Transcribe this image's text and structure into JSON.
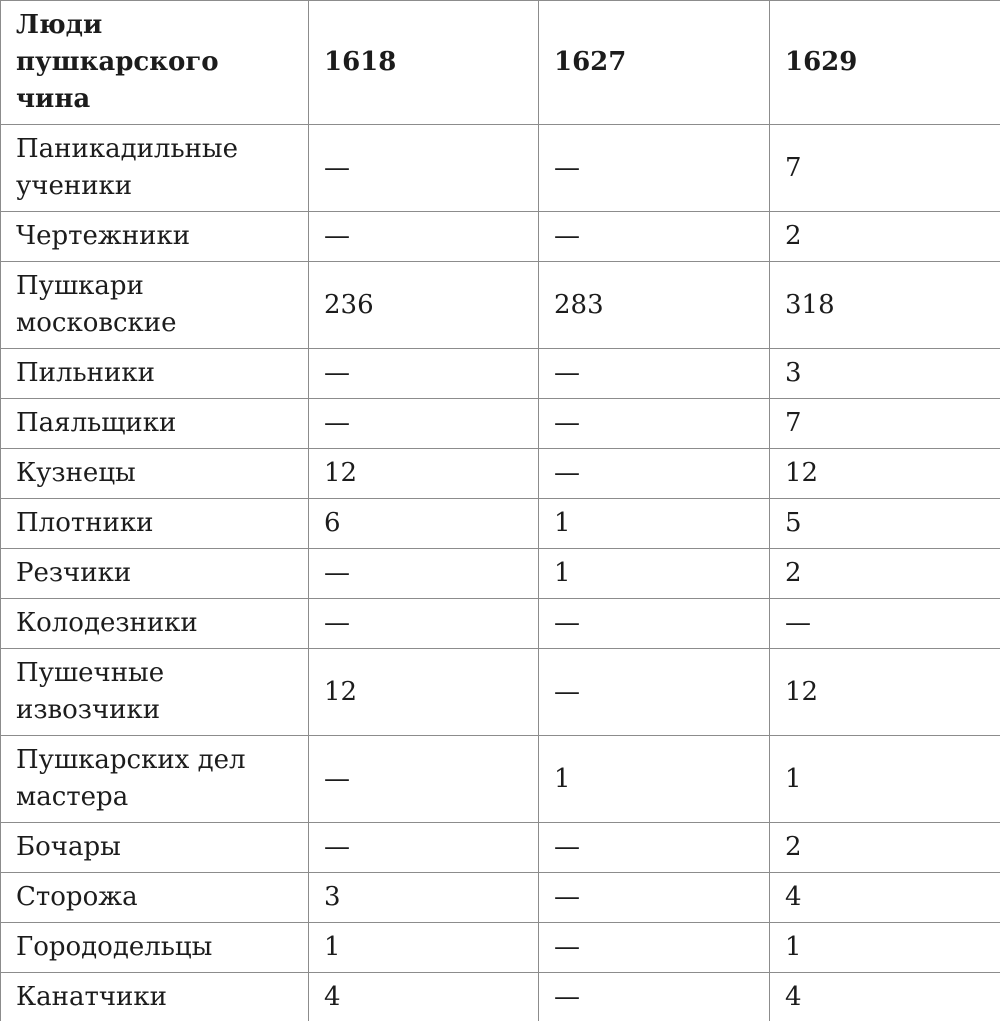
{
  "colors": {
    "border": "#8c8c8c",
    "text": "#1c1c1c",
    "background": "#ffffff"
  },
  "table": {
    "header": {
      "category_label": "Люди\nпушкарского чина",
      "years": [
        "1618",
        "1627",
        "1629"
      ]
    },
    "empty_marker": "—",
    "rows": [
      {
        "label": "Паникадильные\nученики",
        "values": [
          "—",
          "—",
          "7"
        ]
      },
      {
        "label": "Чертежники",
        "values": [
          "—",
          "—",
          "2"
        ]
      },
      {
        "label": "Пушкари\nмосковские",
        "values": [
          "236",
          "283",
          "318"
        ]
      },
      {
        "label": "Пильники",
        "values": [
          "—",
          "—",
          "3"
        ]
      },
      {
        "label": "Паяльщики",
        "values": [
          "—",
          "—",
          "7"
        ]
      },
      {
        "label": "Кузнецы",
        "values": [
          "12",
          "—",
          "12"
        ]
      },
      {
        "label": "Плотники",
        "values": [
          "6",
          "1",
          "5"
        ]
      },
      {
        "label": "Резчики",
        "values": [
          "—",
          "1",
          "2"
        ]
      },
      {
        "label": "Колодезники",
        "values": [
          "—",
          "—",
          "—"
        ]
      },
      {
        "label": "Пушечные\nизвозчики",
        "values": [
          "12",
          "—",
          "12"
        ]
      },
      {
        "label": "Пушкарских дел\nмастера",
        "values": [
          "—",
          "1",
          "1"
        ]
      },
      {
        "label": "Бочары",
        "values": [
          "—",
          "—",
          "2"
        ]
      },
      {
        "label": "Сторожа",
        "values": [
          "3",
          "—",
          "4"
        ]
      },
      {
        "label": "Горододельцы",
        "values": [
          "1",
          "—",
          "1"
        ]
      },
      {
        "label": "Канатчики",
        "values": [
          "4",
          "—",
          "4"
        ]
      }
    ]
  }
}
